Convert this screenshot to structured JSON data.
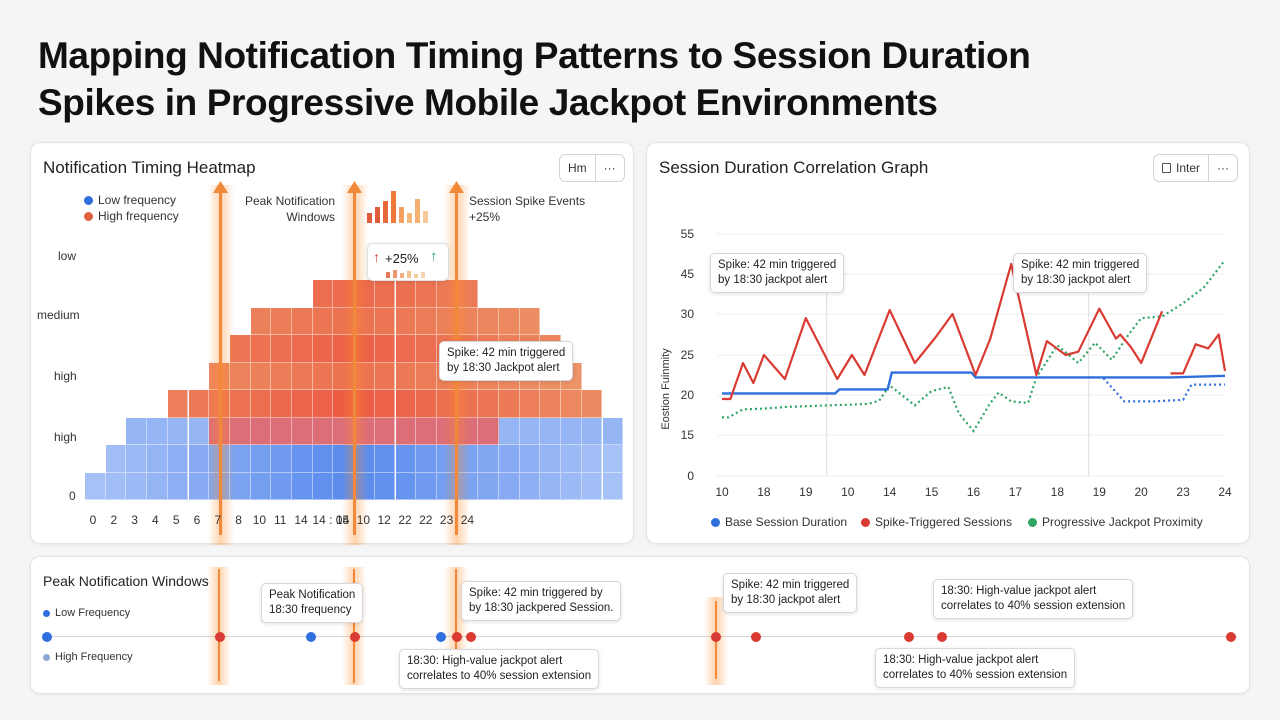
{
  "page": {
    "title_line1": "Mapping Notification Timing Patterns to Session Duration",
    "title_line2": "Spikes in Progressive Mobile Jackpot Environments"
  },
  "heatmap": {
    "title": "Notification Timing Heatmap",
    "toolbar": {
      "left": "Hm",
      "right": "···"
    },
    "legend": {
      "low": "Low frequency",
      "high": "High frequency"
    },
    "peak_label_1": "Peak Notification",
    "peak_label_2": "Windows",
    "spike_label_1": "Session Spike Events",
    "spike_label_2": "+25%",
    "badge_text": "+25%",
    "callout_1": "Spike: 42 min triggered",
    "callout_2": "by 18:30 Jackpot alert",
    "y_labels": [
      "low",
      "medium",
      "high",
      "high",
      "0"
    ],
    "x_labels": [
      "0",
      "2",
      "3",
      "4",
      "5",
      "6",
      "7",
      "8",
      "10",
      "11",
      "14",
      "14 : 05",
      "14",
      "10",
      "12",
      "22",
      "22",
      "23",
      "24"
    ]
  },
  "correlation": {
    "title": "Session Duration Correlation Graph",
    "toolbar": {
      "left": "Inter",
      "right": "···"
    },
    "ylabel": "Eostion Fuinmity",
    "callout_a_1": "Spike: 42 min triggered",
    "callout_a_2": "by 18:30 jackpot alert",
    "callout_b_1": "Spike: 42 min triggered",
    "callout_b_2": "by 18:30 jackpot alert",
    "legend": {
      "base": "Base Session Duration",
      "spike": "Spike-Triggered Sessions",
      "jackpot": "Progressive Jackpot Proximity"
    }
  },
  "chart_data": {
    "type": "line",
    "x": [
      "10",
      "18",
      "19",
      "10",
      "14",
      "15",
      "16",
      "17",
      "18",
      "19",
      "20",
      "23",
      "24"
    ],
    "y_ticks": [
      55,
      45,
      30,
      25,
      20,
      15,
      0
    ],
    "ylabel": "Eostion Fuinmity",
    "grid": true,
    "legend_position": "bottom",
    "series": [
      {
        "name": "Base Session Duration",
        "color": "#2f6fdd",
        "points": [
          [
            0,
            20.2
          ],
          [
            1.25,
            20.2
          ],
          [
            2.7,
            20.2
          ],
          [
            2.8,
            20.7
          ],
          [
            3.95,
            20.7
          ],
          [
            4.05,
            22.8
          ],
          [
            5.95,
            22.8
          ],
          [
            6.05,
            22.2
          ],
          [
            10.7,
            22.2
          ],
          [
            12,
            22.4
          ]
        ],
        "dotted_points": [
          [
            9.1,
            22.1
          ],
          [
            9.6,
            19.2
          ],
          [
            10.3,
            19.2
          ],
          [
            11,
            19.4
          ],
          [
            11.2,
            21.3
          ],
          [
            12,
            21.3
          ]
        ]
      },
      {
        "name": "Spike-Triggered Sessions",
        "color": "#d93b32",
        "points": [
          [
            0,
            19.5
          ],
          [
            0.2,
            19.5
          ],
          [
            0.5,
            24
          ],
          [
            0.75,
            21.5
          ],
          [
            1,
            25
          ],
          [
            1.5,
            22
          ],
          [
            2,
            29.5
          ],
          [
            2.5,
            24.5
          ],
          [
            2.75,
            22
          ],
          [
            3.1,
            25
          ],
          [
            3.4,
            22.5
          ],
          [
            4,
            31.5
          ],
          [
            4.6,
            24
          ],
          [
            5.1,
            27.2
          ],
          [
            5.5,
            30
          ],
          [
            6.05,
            22.5
          ],
          [
            6.4,
            27
          ],
          [
            6.9,
            47.5
          ],
          [
            7.5,
            22.5
          ],
          [
            7.75,
            26.7
          ],
          [
            8.2,
            25
          ],
          [
            8.5,
            25.4
          ],
          [
            9,
            32
          ],
          [
            9.4,
            27
          ],
          [
            9.5,
            27.5
          ],
          [
            9.75,
            26
          ],
          [
            10,
            24
          ],
          [
            10.5,
            31
          ]
        ],
        "segment_2": [
          [
            10.7,
            22.7
          ],
          [
            11,
            22.7
          ],
          [
            11.3,
            26.3
          ],
          [
            11.6,
            25.8
          ],
          [
            11.85,
            27.5
          ],
          [
            12,
            23
          ]
        ]
      },
      {
        "name": "Progressive Jackpot Proximity",
        "color": "#2fa564",
        "points": [
          [
            0,
            17.2
          ],
          [
            0.15,
            17.2
          ],
          [
            0.5,
            18.2
          ],
          [
            1,
            18.3
          ],
          [
            1.5,
            18.5
          ],
          [
            2,
            18.6
          ],
          [
            2.5,
            18.7
          ],
          [
            3.1,
            18.8
          ],
          [
            3.5,
            18.9
          ],
          [
            3.75,
            19.3
          ],
          [
            4,
            21.2
          ],
          [
            4.6,
            18.7
          ],
          [
            5,
            20.5
          ],
          [
            5.4,
            21
          ],
          [
            5.65,
            17.7
          ],
          [
            6,
            15.5
          ],
          [
            6.4,
            19
          ],
          [
            6.6,
            20.3
          ],
          [
            6.9,
            19.2
          ],
          [
            7.3,
            19
          ],
          [
            7.5,
            22.2
          ],
          [
            8,
            26.2
          ],
          [
            8.5,
            24
          ],
          [
            8.9,
            26.5
          ],
          [
            9.3,
            24.4
          ],
          [
            9.7,
            27.5
          ],
          [
            10,
            29.5
          ],
          [
            10.5,
            29.7
          ],
          [
            11,
            34
          ],
          [
            11.5,
            40
          ],
          [
            12,
            48.5
          ]
        ]
      }
    ],
    "heatmap_rows": [
      {
        "label": "low",
        "cells": []
      },
      {
        "label": "medium",
        "cells": [
          0.78,
          0.8
        ]
      },
      {
        "label": "high",
        "cells": [
          0.7,
          0.72,
          0.8,
          0.85,
          0.85,
          0.82
        ]
      },
      {
        "label": "high",
        "cells": [
          0.55,
          0.6,
          0.7,
          0.8,
          0.9,
          0.95,
          0.9,
          0.8,
          0.7,
          0.6
        ]
      },
      {
        "label": "0",
        "cells": [
          0.2,
          0.25,
          0.5,
          0.55,
          0.7,
          0.75,
          0.6,
          0.5,
          0.45,
          0.35
        ]
      }
    ]
  },
  "timeline": {
    "title": "Peak Notification Windows",
    "legend_low": "Low Frequency",
    "legend_high": "High Frequency",
    "c1_l1": "Peak Notification",
    "c1_l2": "18:30 frequency",
    "c2_l1": "Spike: 42 min triggered by",
    "c2_l2": "by 18:30 jackpered Session.",
    "c3_l1": "Spike: 42 min triggered",
    "c3_l2": "by 18:30 jackpot alert",
    "c4_l1": "18:30: High-value jackpot alert",
    "c4_l2": "correlates to 40% session extension",
    "c5_l1": "18:30: High-value jackpot alert",
    "c5_l2": "correlates to 40% session extension",
    "c6_l1": "18:30: High-value jackpot alert",
    "c6_l2": "correlates to 40% session extension"
  },
  "colors": {
    "blue": "#2f6fdd",
    "red": "#d93b32",
    "green": "#2fa564",
    "orange": "#f08a3a"
  }
}
